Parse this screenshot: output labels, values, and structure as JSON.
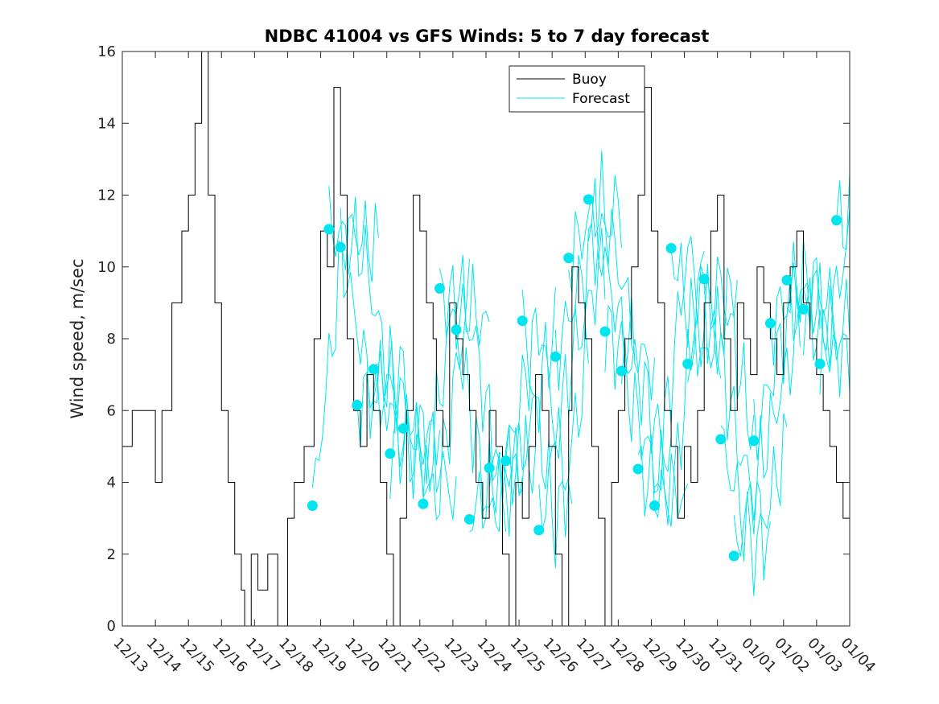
{
  "chart_data": {
    "type": "line",
    "title": "NDBC 41004 vs GFS Winds: 5 to 7 day forecast",
    "xlabel": "",
    "ylabel": "Wind speed, m/sec",
    "xlim": [
      0,
      22
    ],
    "ylim": [
      0,
      16
    ],
    "yticks": [
      0,
      2,
      4,
      6,
      8,
      10,
      12,
      14,
      16
    ],
    "xtick_labels": [
      "12/13",
      "12/14",
      "12/15",
      "12/16",
      "12/17",
      "12/18",
      "12/19",
      "12/20",
      "12/21",
      "12/22",
      "12/23",
      "12/24",
      "12/25",
      "12/26",
      "12/27",
      "12/28",
      "12/29",
      "12/30",
      "12/31",
      "01/01",
      "01/02",
      "01/03",
      "01/04"
    ],
    "legend": {
      "position": "top-center",
      "entries": [
        "Buoy",
        "Forecast"
      ]
    },
    "colors": {
      "buoy": "#000000",
      "forecast": "#00e5ee",
      "axis": "#262626"
    },
    "series": [
      {
        "name": "Buoy",
        "style": "stairs",
        "x": [
          0,
          0.3,
          0.6,
          1,
          1.2,
          1.5,
          1.8,
          2.0,
          2.2,
          2.4,
          2.6,
          2.8,
          3.0,
          3.2,
          3.4,
          3.6,
          3.7,
          3.9,
          4.1,
          4.4,
          4.7,
          5.0,
          5.2,
          5.5,
          5.8,
          6.0,
          6.2,
          6.4,
          6.6,
          6.8,
          7.0,
          7.2,
          7.4,
          7.6,
          7.8,
          8.0,
          8.2,
          8.4,
          8.6,
          8.8,
          9.0,
          9.2,
          9.4,
          9.5,
          9.7,
          9.9,
          10.1,
          10.3,
          10.5,
          10.7,
          10.9,
          11.1,
          11.3,
          11.5,
          11.7,
          11.9,
          12.1,
          12.3,
          12.5,
          12.7,
          12.9,
          13.1,
          13.3,
          13.5,
          13.6,
          13.8,
          14.0,
          14.2,
          14.4,
          14.6,
          14.8,
          15.0,
          15.2,
          15.4,
          15.6,
          15.8,
          16.0,
          16.2,
          16.4,
          16.6,
          16.8,
          17.0,
          17.2,
          17.4,
          17.6,
          17.8,
          18.0,
          18.2,
          18.4,
          18.6,
          18.8,
          19.0,
          19.2,
          19.4,
          19.6,
          19.8,
          20.0,
          20.2,
          20.4,
          20.6,
          20.8,
          21.0,
          21.2,
          21.4,
          21.6,
          21.8,
          22.0
        ],
        "values": [
          5,
          6,
          6,
          4,
          6,
          9,
          11,
          12,
          14,
          16,
          12,
          9,
          6,
          4,
          2,
          1,
          0,
          2,
          1,
          2,
          0,
          3,
          4,
          5,
          8,
          11,
          10,
          15,
          12,
          8,
          6,
          5,
          7,
          6,
          4,
          2,
          0,
          3,
          6,
          12,
          11,
          9,
          8,
          6,
          5,
          9,
          8,
          7,
          6,
          4,
          3,
          6,
          5,
          2,
          0,
          4,
          3,
          5,
          7,
          6,
          5,
          2,
          0,
          6,
          10,
          9,
          8,
          5,
          3,
          0,
          4,
          6,
          8,
          10,
          12,
          15,
          11,
          9,
          6,
          5,
          3,
          5,
          4,
          6,
          9,
          11,
          12,
          8,
          6,
          9,
          8,
          7,
          10,
          9,
          8,
          7,
          9,
          10,
          11,
          9,
          8,
          7,
          6,
          5,
          4,
          3,
          4
        ]
      },
      {
        "name": "Forecast",
        "style": "markers",
        "x": [
          5.75,
          6.25,
          6.6,
          7.1,
          7.6,
          8.1,
          8.5,
          9.1,
          9.6,
          10.1,
          10.5,
          11.1,
          11.6,
          12.1,
          12.6,
          13.1,
          13.5,
          14.1,
          14.6,
          15.1,
          15.6,
          16.1,
          16.6,
          17.1,
          17.6,
          18.1,
          18.5,
          19.1,
          19.6,
          20.1,
          20.6,
          21.1,
          21.6
        ],
        "values": [
          3.35,
          11.05,
          10.55,
          6.15,
          7.15,
          4.8,
          5.5,
          3.4,
          9.4,
          8.25,
          2.97,
          4.4,
          4.6,
          8.5,
          2.67,
          7.5,
          10.25,
          11.88,
          8.2,
          7.1,
          4.37,
          3.35,
          10.52,
          7.3,
          9.66,
          5.2,
          1.95,
          5.16,
          8.43,
          9.63,
          8.82,
          7.3,
          11.3
        ]
      }
    ]
  }
}
